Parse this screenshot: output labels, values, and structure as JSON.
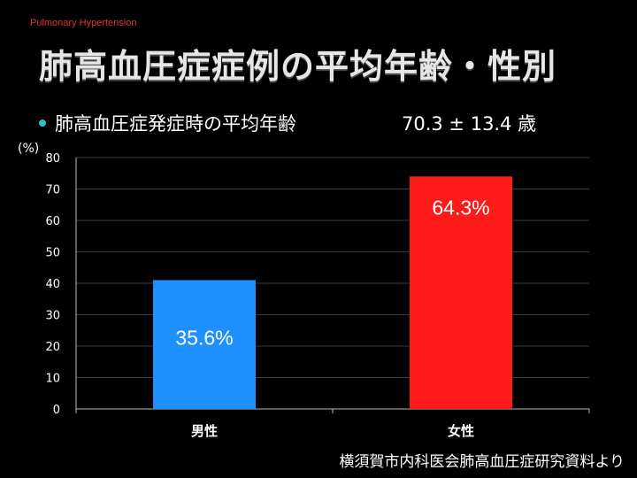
{
  "header": {
    "top_label": "Pulmonary Hypertension",
    "title": "肺高血圧症症例の平均年齢・性別"
  },
  "bullet": {
    "text": "肺高血圧症発症時の平均年齢",
    "age_value": "70.3 ± 13.4 歳"
  },
  "footer": {
    "source": "横須賀市内科医会肺高血圧症研究資料より"
  },
  "colors": {
    "background": "#000000",
    "male_bar": "#1e90ff",
    "female_bar": "#ff1a1a",
    "gridline": "#3a3a4a",
    "bullet": "#2ec0c9",
    "top_label": "#e3342f"
  },
  "chart_data": {
    "type": "bar",
    "title": "",
    "ylabel": "(%)",
    "xlabel": "",
    "ylim": [
      0,
      80
    ],
    "yticks": [
      0,
      10,
      20,
      30,
      40,
      50,
      60,
      70,
      80
    ],
    "grid": true,
    "categories": [
      "男性",
      "女性"
    ],
    "values": [
      41,
      74
    ],
    "data_labels": [
      "35.6%",
      "64.3%"
    ]
  }
}
